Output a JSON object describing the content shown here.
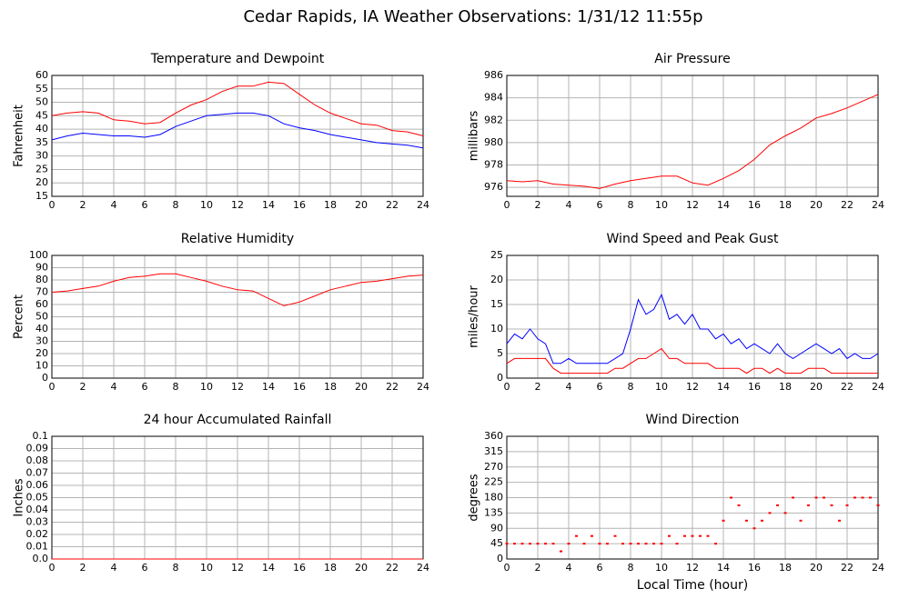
{
  "title": "Cedar Rapids, IA Weather Observations: 1/31/12 11:55p",
  "chart_data": [
    {
      "type": "line",
      "title": "Temperature and Dewpoint",
      "ylabel": "Fahrenheit",
      "x": [
        0,
        1,
        2,
        3,
        4,
        5,
        6,
        7,
        8,
        9,
        10,
        11,
        12,
        13,
        14,
        15,
        16,
        17,
        18,
        19,
        20,
        21,
        22,
        23,
        24
      ],
      "series": [
        {
          "color": "#ff0000",
          "values": [
            45,
            46,
            46.5,
            46,
            43.5,
            43,
            42,
            42.5,
            46,
            49,
            51,
            54,
            56,
            56,
            57.5,
            57,
            53,
            49,
            46,
            44,
            42,
            41.5,
            39.5,
            39,
            37.5
          ]
        },
        {
          "color": "#0000ff",
          "values": [
            36,
            37.5,
            38.5,
            38,
            37.5,
            37.5,
            37,
            38,
            41,
            43,
            45,
            45.5,
            46,
            46,
            45,
            42,
            40.5,
            39.5,
            38,
            37,
            36,
            35,
            34.5,
            34,
            33
          ]
        }
      ],
      "xlim": [
        0,
        24
      ],
      "xticks": [
        0,
        2,
        4,
        6,
        8,
        10,
        12,
        14,
        16,
        18,
        20,
        22,
        24
      ],
      "ylim": [
        15,
        60
      ],
      "yticks": [
        15,
        20,
        25,
        30,
        35,
        40,
        45,
        50,
        55,
        60
      ],
      "grid": true
    },
    {
      "type": "line",
      "title": "Air Pressure",
      "ylabel": "millibars",
      "x": [
        0,
        1,
        2,
        3,
        4,
        5,
        6,
        7,
        8,
        9,
        10,
        11,
        12,
        13,
        14,
        15,
        16,
        17,
        18,
        19,
        20,
        21,
        22,
        23,
        24
      ],
      "series": [
        {
          "color": "#ff0000",
          "values": [
            976.6,
            976.5,
            976.6,
            976.3,
            976.2,
            976.1,
            975.9,
            976.3,
            976.6,
            976.8,
            977.0,
            977.0,
            976.4,
            976.2,
            976.8,
            977.5,
            978.5,
            979.8,
            980.6,
            981.3,
            982.2,
            982.6,
            983.1,
            983.7,
            984.3
          ]
        }
      ],
      "xlim": [
        0,
        24
      ],
      "xticks": [
        0,
        2,
        4,
        6,
        8,
        10,
        12,
        14,
        16,
        18,
        20,
        22,
        24
      ],
      "ylim": [
        975.2,
        986
      ],
      "yticks": [
        976,
        978,
        980,
        982,
        984,
        986
      ],
      "grid": true
    },
    {
      "type": "line",
      "title": "Relative Humidity",
      "ylabel": "Percent",
      "x": [
        0,
        1,
        2,
        3,
        4,
        5,
        6,
        7,
        8,
        9,
        10,
        11,
        12,
        13,
        14,
        15,
        16,
        17,
        18,
        19,
        20,
        21,
        22,
        23,
        24
      ],
      "series": [
        {
          "color": "#ff0000",
          "values": [
            70,
            71,
            73,
            75,
            79,
            82,
            83,
            85,
            85,
            82,
            79,
            75,
            72,
            71,
            65,
            59,
            62,
            67,
            72,
            75,
            78,
            79,
            81,
            83,
            84
          ]
        }
      ],
      "xlim": [
        0,
        24
      ],
      "xticks": [
        0,
        2,
        4,
        6,
        8,
        10,
        12,
        14,
        16,
        18,
        20,
        22,
        24
      ],
      "ylim": [
        0,
        100
      ],
      "yticks": [
        0,
        10,
        20,
        30,
        40,
        50,
        60,
        70,
        80,
        90,
        100
      ],
      "grid": true
    },
    {
      "type": "line",
      "title": "Wind Speed and Peak Gust",
      "ylabel": "miles/hour",
      "x": [
        0,
        0.5,
        1,
        1.5,
        2,
        2.5,
        3,
        3.5,
        4,
        4.5,
        5,
        5.5,
        6,
        6.5,
        7,
        7.5,
        8,
        8.5,
        9,
        9.5,
        10,
        10.5,
        11,
        11.5,
        12,
        12.5,
        13,
        13.5,
        14,
        14.5,
        15,
        15.5,
        16,
        16.5,
        17,
        17.5,
        18,
        18.5,
        19,
        19.5,
        20,
        20.5,
        21,
        21.5,
        22,
        22.5,
        23,
        23.5,
        24
      ],
      "series": [
        {
          "color": "#0000ff",
          "values": [
            7,
            9,
            8,
            10,
            8,
            7,
            3,
            3,
            4,
            3,
            3,
            3,
            3,
            3,
            4,
            5,
            10,
            16,
            13,
            14,
            17,
            12,
            13,
            11,
            13,
            10,
            10,
            8,
            9,
            7,
            8,
            6,
            7,
            6,
            5,
            7,
            5,
            4,
            5,
            6,
            7,
            6,
            5,
            6,
            4,
            5,
            4,
            4,
            5
          ]
        },
        {
          "color": "#ff0000",
          "values": [
            3,
            4,
            4,
            4,
            4,
            4,
            2,
            1,
            1,
            1,
            1,
            1,
            1,
            1,
            2,
            2,
            3,
            4,
            4,
            5,
            6,
            4,
            4,
            3,
            3,
            3,
            3,
            2,
            2,
            2,
            2,
            1,
            2,
            2,
            1,
            2,
            1,
            1,
            1,
            2,
            2,
            2,
            1,
            1,
            1,
            1,
            1,
            1,
            1
          ]
        }
      ],
      "xlim": [
        0,
        24
      ],
      "xticks": [
        0,
        2,
        4,
        6,
        8,
        10,
        12,
        14,
        16,
        18,
        20,
        22,
        24
      ],
      "ylim": [
        0,
        25
      ],
      "yticks": [
        0,
        5,
        10,
        15,
        20,
        25
      ],
      "grid": true
    },
    {
      "type": "line",
      "title": "24 hour Accumulated Rainfall",
      "ylabel": "Inches",
      "x": [
        0,
        24
      ],
      "series": [
        {
          "color": "#ff0000",
          "values": [
            0,
            0
          ]
        }
      ],
      "xlim": [
        0,
        24
      ],
      "xticks": [
        0,
        2,
        4,
        6,
        8,
        10,
        12,
        14,
        16,
        18,
        20,
        22,
        24
      ],
      "ylim": [
        0,
        0.1
      ],
      "yticks": [
        {
          "value": 0,
          "label": "0.0"
        },
        0.01,
        0.02,
        0.03,
        0.04,
        0.05,
        0.06,
        0.07,
        0.08,
        0.09,
        0.1
      ],
      "grid": true
    },
    {
      "type": "scatter",
      "title": "Wind Direction",
      "ylabel": "degrees",
      "xlabel": "Local Time (hour)",
      "x": [
        0,
        0.5,
        1,
        1.5,
        2,
        2.5,
        3,
        3.5,
        4,
        4.5,
        5,
        5.5,
        6,
        6.5,
        7,
        7.5,
        8,
        8.5,
        9,
        9.5,
        10,
        10.5,
        11,
        11.5,
        12,
        12.5,
        13,
        13.5,
        14,
        14.5,
        15,
        15.5,
        16,
        16.5,
        17,
        17.5,
        18,
        18.5,
        19,
        19.5,
        20,
        20.5,
        21,
        21.5,
        22,
        22.5,
        23,
        23.5,
        24
      ],
      "series": [
        {
          "color": "#ff0000",
          "values": [
            45,
            45,
            45,
            45,
            45,
            45,
            45,
            22.5,
            45,
            67.5,
            45,
            67.5,
            45,
            45,
            67.5,
            45,
            45,
            45,
            45,
            45,
            45,
            67.5,
            45,
            67.5,
            67.5,
            67.5,
            67.5,
            45,
            112.5,
            180,
            157.5,
            112.5,
            90,
            112.5,
            135,
            157.5,
            135,
            180,
            112.5,
            157.5,
            180,
            180,
            157.5,
            112.5,
            157.5,
            180,
            180,
            180,
            157.5
          ]
        }
      ],
      "xlim": [
        0,
        24
      ],
      "xticks": [
        0,
        2,
        4,
        6,
        8,
        10,
        12,
        14,
        16,
        18,
        20,
        22,
        24
      ],
      "ylim": [
        0,
        360
      ],
      "yticks": [
        0,
        45,
        90,
        135,
        180,
        225,
        270,
        315,
        360
      ],
      "grid": true
    }
  ]
}
